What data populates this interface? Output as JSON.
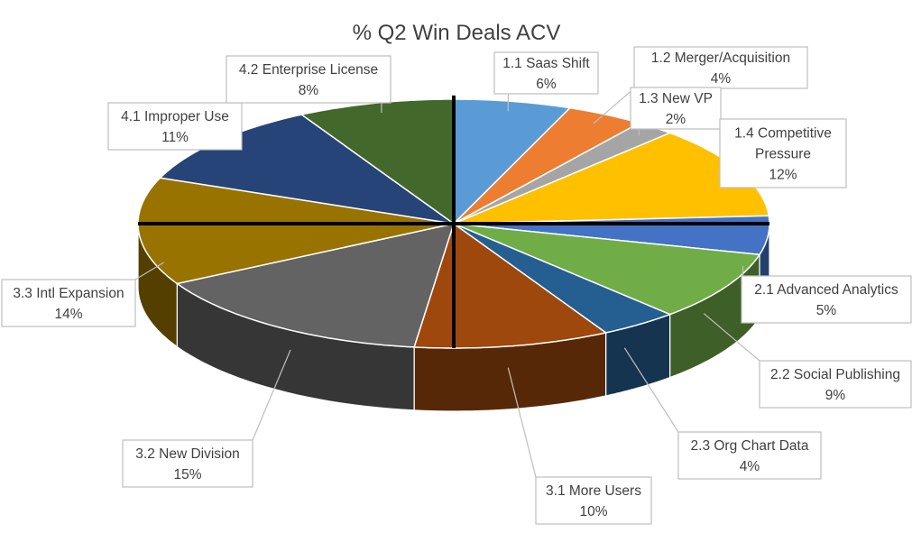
{
  "chart_data": {
    "type": "pie",
    "style": "3d-exploded-pie",
    "title": "% Q2 Win Deals ACV",
    "slices": [
      {
        "label": "1.1 Saas Shift",
        "value": 6,
        "value_label": "6%",
        "color": "#5b9bd5"
      },
      {
        "label": "1.2 Merger/Acquisition",
        "value": 4,
        "value_label": "4%",
        "color": "#ed7d31"
      },
      {
        "label": "1.3 New VP",
        "value": 2,
        "value_label": "2%",
        "color": "#a5a5a5"
      },
      {
        "label": "1.4 Competitive Pressure",
        "value": 12,
        "value_label": "12%",
        "color": "#ffc000"
      },
      {
        "label": "2.1 Advanced Analytics",
        "value": 5,
        "value_label": "5%",
        "color": "#4472c4"
      },
      {
        "label": "2.2 Social Publishing",
        "value": 9,
        "value_label": "9%",
        "color": "#70ad47"
      },
      {
        "label": "2.3 Org Chart Data",
        "value": 4,
        "value_label": "4%",
        "color": "#255e91"
      },
      {
        "label": "3.1 More Users",
        "value": 10,
        "value_label": "10%",
        "color": "#9e480e"
      },
      {
        "label": "3.2 New Division",
        "value": 15,
        "value_label": "15%",
        "color": "#636363"
      },
      {
        "label": "3.3 Intl Expansion",
        "value": 14,
        "value_label": "14%",
        "color": "#997300"
      },
      {
        "label": "4.1 Improper Use",
        "value": 11,
        "value_label": "11%",
        "color": "#264478"
      },
      {
        "label": "4.2 Enterprise License",
        "value": 8,
        "value_label": "8%",
        "color": "#43682b"
      }
    ],
    "legend": "none",
    "data_labels": "callouts"
  }
}
